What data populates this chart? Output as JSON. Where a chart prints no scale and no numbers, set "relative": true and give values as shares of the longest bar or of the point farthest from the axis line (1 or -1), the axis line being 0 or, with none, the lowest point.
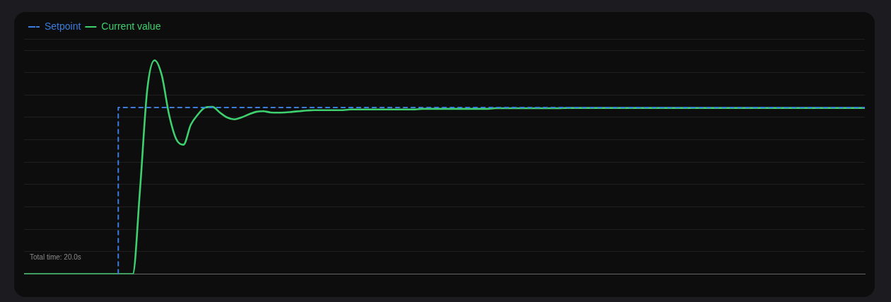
{
  "chart_data": {
    "type": "line",
    "relative": true,
    "grid": "y",
    "legend": "top left",
    "marker": "none",
    "annotations": [
      "Total time: 20.0s"
    ],
    "categories": [
      null,
      null,
      null,
      null,
      null,
      null,
      null,
      null,
      null,
      null,
      null,
      null,
      null,
      null,
      null,
      null,
      null,
      null,
      null,
      null,
      null,
      null,
      null,
      null,
      null,
      null,
      null,
      null,
      null,
      null,
      null,
      null,
      null,
      null,
      null,
      null,
      null,
      null,
      null,
      null,
      null,
      null,
      null,
      null,
      null,
      null,
      null,
      null,
      null,
      null,
      null,
      null,
      null,
      null,
      null,
      null,
      null,
      null,
      null,
      null,
      null,
      null,
      null,
      null,
      null,
      null,
      null,
      null,
      null,
      null,
      null,
      null,
      null,
      null,
      null,
      null,
      null,
      null,
      null,
      null,
      null,
      null,
      null,
      null,
      null,
      null,
      null,
      null,
      null,
      null,
      null,
      null,
      null,
      null,
      null,
      null,
      null,
      null,
      null,
      null,
      null,
      null,
      null,
      null,
      null,
      null,
      null,
      null,
      null,
      null,
      null,
      null,
      null,
      null,
      null,
      null,
      null
    ],
    "series": [
      {
        "name": "Setpoint",
        "type": "step",
        "line_style": "dashed",
        "color": "#3b7ddd",
        "values": [
          null,
          null,
          null,
          null,
          null,
          null,
          null,
          null,
          null,
          null,
          null,
          null,
          null,
          0,
          0.779,
          0.779,
          0.779,
          0.779,
          0.779,
          0.779,
          0.779,
          0.779,
          0.779,
          0.779,
          0.779,
          0.779,
          0.779,
          0.779,
          0.779,
          0.779,
          0.779,
          0.779,
          0.779,
          0.779,
          0.779,
          0.779,
          0.779,
          0.779,
          0.779,
          0.779,
          0.779,
          0.779,
          0.779,
          0.779,
          0.779,
          0.779,
          0.779,
          0.779,
          0.779,
          0.779,
          0.779,
          0.779,
          0.779,
          0.779,
          0.779,
          0.779,
          0.779,
          0.779,
          0.779,
          0.779,
          0.779,
          0.779,
          0.779,
          0.779,
          0.779,
          0.779,
          0.779,
          0.779,
          0.779,
          0.779,
          0.779,
          0.779,
          0.779,
          0.779,
          0.779,
          0.779,
          0.779,
          0.779,
          0.779,
          0.779,
          0.779,
          0.779,
          0.779,
          0.779,
          0.779,
          0.779,
          0.779,
          0.779,
          0.779,
          0.779,
          0.779,
          0.779,
          0.779,
          0.779,
          0.779,
          0.779,
          0.779,
          0.779,
          0.779,
          0.779,
          0.779,
          0.779,
          0.779,
          0.779,
          0.779,
          0.779,
          0.779,
          0.779,
          0.779,
          0.779,
          0.779,
          0.779,
          0.779,
          0.779,
          0.779,
          0.779,
          0.779
        ]
      },
      {
        "name": "Current value",
        "type": "line",
        "line_style": "solid",
        "color": "#3ecf6e",
        "values": [
          0,
          0,
          0,
          0,
          0,
          0,
          0,
          0,
          0,
          0,
          0,
          0,
          0,
          0,
          0,
          0,
          0.395,
          0.863,
          1,
          0.93,
          0.747,
          0.631,
          0.605,
          0.698,
          0.747,
          0.779,
          0.782,
          0.756,
          0.733,
          0.724,
          0.733,
          0.747,
          0.759,
          0.762,
          0.756,
          0.755,
          0.756,
          0.759,
          0.762,
          0.765,
          0.767,
          0.767,
          0.767,
          0.767,
          0.767,
          0.77,
          0.77,
          0.77,
          0.77,
          0.77,
          0.77,
          0.77,
          0.77,
          0.77,
          0.77,
          0.773,
          0.773,
          0.773,
          0.773,
          0.773,
          0.773,
          0.773,
          0.773,
          0.773,
          0.773,
          0.776,
          0.776,
          0.776,
          0.776,
          0.776,
          0.776,
          0.776,
          0.776,
          0.776,
          0.776,
          0.777,
          0.777,
          0.777,
          0.777,
          0.777,
          0.777,
          0.777,
          0.777,
          0.777,
          0.777,
          0.777,
          0.777,
          0.777,
          0.777,
          0.777,
          0.777,
          0.777,
          0.777,
          0.777,
          0.777,
          0.777,
          0.777,
          0.777,
          0.777,
          0.777,
          0.777,
          0.777,
          0.777,
          0.777,
          0.777,
          0.777,
          0.777,
          0.777,
          0.777,
          0.777,
          0.777,
          0.777,
          0.777,
          0.777,
          0.777,
          0.777,
          0.777
        ]
      }
    ]
  }
}
